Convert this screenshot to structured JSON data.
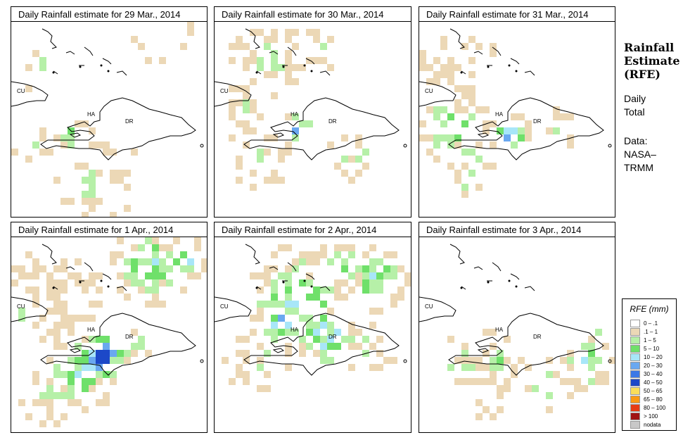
{
  "panels": [
    {
      "title": "Daily Rainfall estimate for  29 Mar., 2014",
      "labels": {
        "cu": "CU",
        "ha": "HA",
        "dr": "DR"
      }
    },
    {
      "title": "Daily Rainfall estimate for  30 Mar., 2014",
      "labels": {
        "cu": "CU",
        "ha": "HA",
        "dr": "DR"
      }
    },
    {
      "title": "Daily Rainfall estimate for  31 Mar., 2014",
      "labels": {
        "cu": "CU",
        "ha": "HA",
        "dr": "DR"
      }
    },
    {
      "title": "Daily Rainfall estimate for  1 Apr., 2014",
      "labels": {
        "cu": "CU",
        "ha": "HA",
        "dr": "DR"
      }
    },
    {
      "title": "Daily Rainfall estimate for  2 Apr., 2014",
      "labels": {
        "cu": "CU",
        "ha": "HA",
        "dr": "DR"
      }
    },
    {
      "title": "Daily Rainfall estimate for  3 Apr., 2014",
      "labels": {
        "cu": "CU",
        "ha": "HA",
        "dr": "DR"
      }
    }
  ],
  "sidebar": {
    "title_lines": [
      "Rainfall",
      "Estimate",
      "(RFE)"
    ],
    "period_lines": [
      "Daily",
      "Total"
    ],
    "source_lines": [
      "Data:",
      "NASA–",
      "TRMM"
    ]
  },
  "legend": {
    "title": "RFE (mm)",
    "entries": [
      {
        "label": "0 – .1",
        "color": "#ffffff"
      },
      {
        "label": ".1 – 1",
        "color": "#ecd8b6"
      },
      {
        "label": "1 – 5",
        "color": "#b6f0a8"
      },
      {
        "label": "5 – 10",
        "color": "#6fe06a"
      },
      {
        "label": "10 – 20",
        "color": "#a8e6f8"
      },
      {
        "label": "20 – 30",
        "color": "#6aa8f0"
      },
      {
        "label": "30 – 40",
        "color": "#3c78e6"
      },
      {
        "label": "40 – 50",
        "color": "#1c48c8"
      },
      {
        "label": "50 – 65",
        "color": "#fade5a"
      },
      {
        "label": "65 – 80",
        "color": "#fa9a14"
      },
      {
        "label": "80 – 100",
        "color": "#e63c14"
      },
      {
        "label": "> 100",
        "color": "#a01414"
      },
      {
        "label": "nodata",
        "color": "#c8c8c8"
      }
    ]
  }
}
